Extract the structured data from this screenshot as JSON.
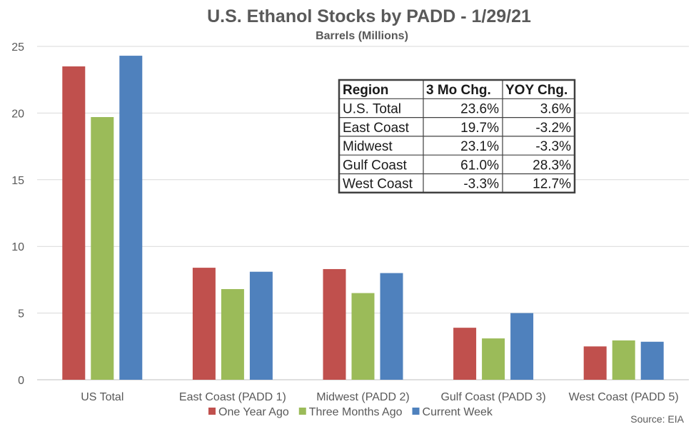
{
  "chart_data": {
    "type": "bar",
    "title": "U.S. Ethanol Stocks by PADD - 1/29/21",
    "subtitle": "Barrels (Millions)",
    "categories": [
      "US Total",
      "East Coast (PADD 1)",
      "Midwest (PADD 2)",
      "Gulf Coast (PADD 3)",
      "West Coast (PADD 5)"
    ],
    "series": [
      {
        "name": "One Year Ago",
        "color": "#C0504D",
        "values": [
          23.5,
          8.4,
          8.3,
          3.9,
          2.5
        ]
      },
      {
        "name": "Three Months Ago",
        "color": "#9BBB59",
        "values": [
          19.7,
          6.8,
          6.5,
          3.1,
          2.95
        ]
      },
      {
        "name": "Current Week",
        "color": "#4F81BD",
        "values": [
          24.3,
          8.1,
          8.0,
          5.0,
          2.85
        ]
      }
    ],
    "ylim": [
      0,
      25
    ],
    "yticks": [
      0,
      5,
      10,
      15,
      20,
      25
    ],
    "grid": true,
    "legend": "bottom",
    "source": "Source: EIA"
  },
  "table": {
    "headers": [
      "Region",
      "3 Mo Chg.",
      "YOY Chg."
    ],
    "rows": [
      [
        "U.S. Total",
        "23.6%",
        "3.6%"
      ],
      [
        "East Coast",
        "19.7%",
        "-3.2%"
      ],
      [
        "Midwest",
        "23.1%",
        "-3.3%"
      ],
      [
        "Gulf Coast",
        "61.0%",
        "28.3%"
      ],
      [
        "West Coast",
        "-3.3%",
        "12.7%"
      ]
    ]
  }
}
